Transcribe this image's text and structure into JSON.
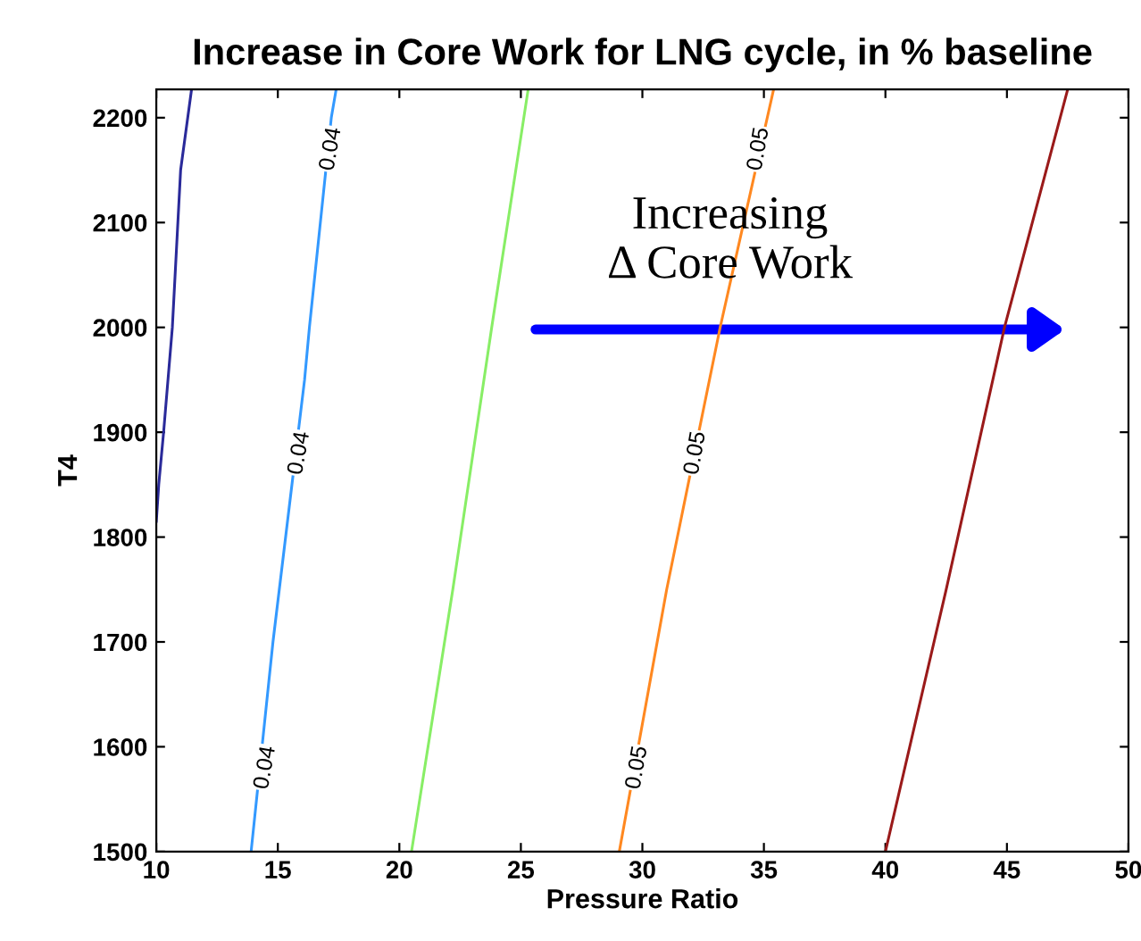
{
  "chart_data": {
    "type": "line",
    "title": "Increase in Core Work for LNG cycle, in % baseline",
    "xlabel": "Pressure Ratio",
    "ylabel": "T4",
    "series": [
      {
        "color": "#2a2a9a",
        "x": [
          10.0,
          10.1,
          10.3,
          10.66,
          11.0,
          11.45
        ],
        "values": [
          1815,
          1850,
          1900,
          2000,
          2150,
          2227
        ]
      },
      {
        "color": "#3399ff",
        "x": [
          13.9,
          14.8,
          16.1,
          16.3,
          17.2,
          17.4
        ],
        "values": [
          1500,
          1700,
          1950,
          2000,
          2200,
          2227
        ]
      },
      {
        "color": "#88ee66",
        "x": [
          20.5,
          22.2,
          23.8,
          25.3
        ],
        "values": [
          1500,
          1750,
          2000,
          2227
        ]
      },
      {
        "color": "#ff8820",
        "x": [
          29.05,
          31.0,
          33.2,
          35.4
        ],
        "values": [
          1500,
          1750,
          2000,
          2227
        ]
      },
      {
        "color": "#9a1a1a",
        "x": [
          40.0,
          42.5,
          44.9,
          47.5
        ],
        "values": [
          1500,
          1750,
          2000,
          2227
        ]
      }
    ],
    "annotations": [
      {
        "text": "0.04",
        "x": 14.5,
        "y": 1580
      },
      {
        "text": "0.04",
        "x": 15.9,
        "y": 1880
      },
      {
        "text": "0.04",
        "x": 17.2,
        "y": 2170
      },
      {
        "text": "0.05",
        "x": 29.8,
        "y": 1580
      },
      {
        "text": "0.05",
        "x": 32.2,
        "y": 1880
      },
      {
        "text": "0.05",
        "x": 34.8,
        "y": 2170
      },
      "Increasing\nΔ Core Work"
    ],
    "xlim": [
      10,
      50
    ],
    "ylim": [
      1500,
      2227
    ],
    "xticks": [
      10,
      15,
      20,
      25,
      30,
      35,
      40,
      45,
      50
    ],
    "yticks": [
      1500,
      1600,
      1700,
      1800,
      1900,
      2000,
      2100,
      2200
    ],
    "grid": false
  }
}
